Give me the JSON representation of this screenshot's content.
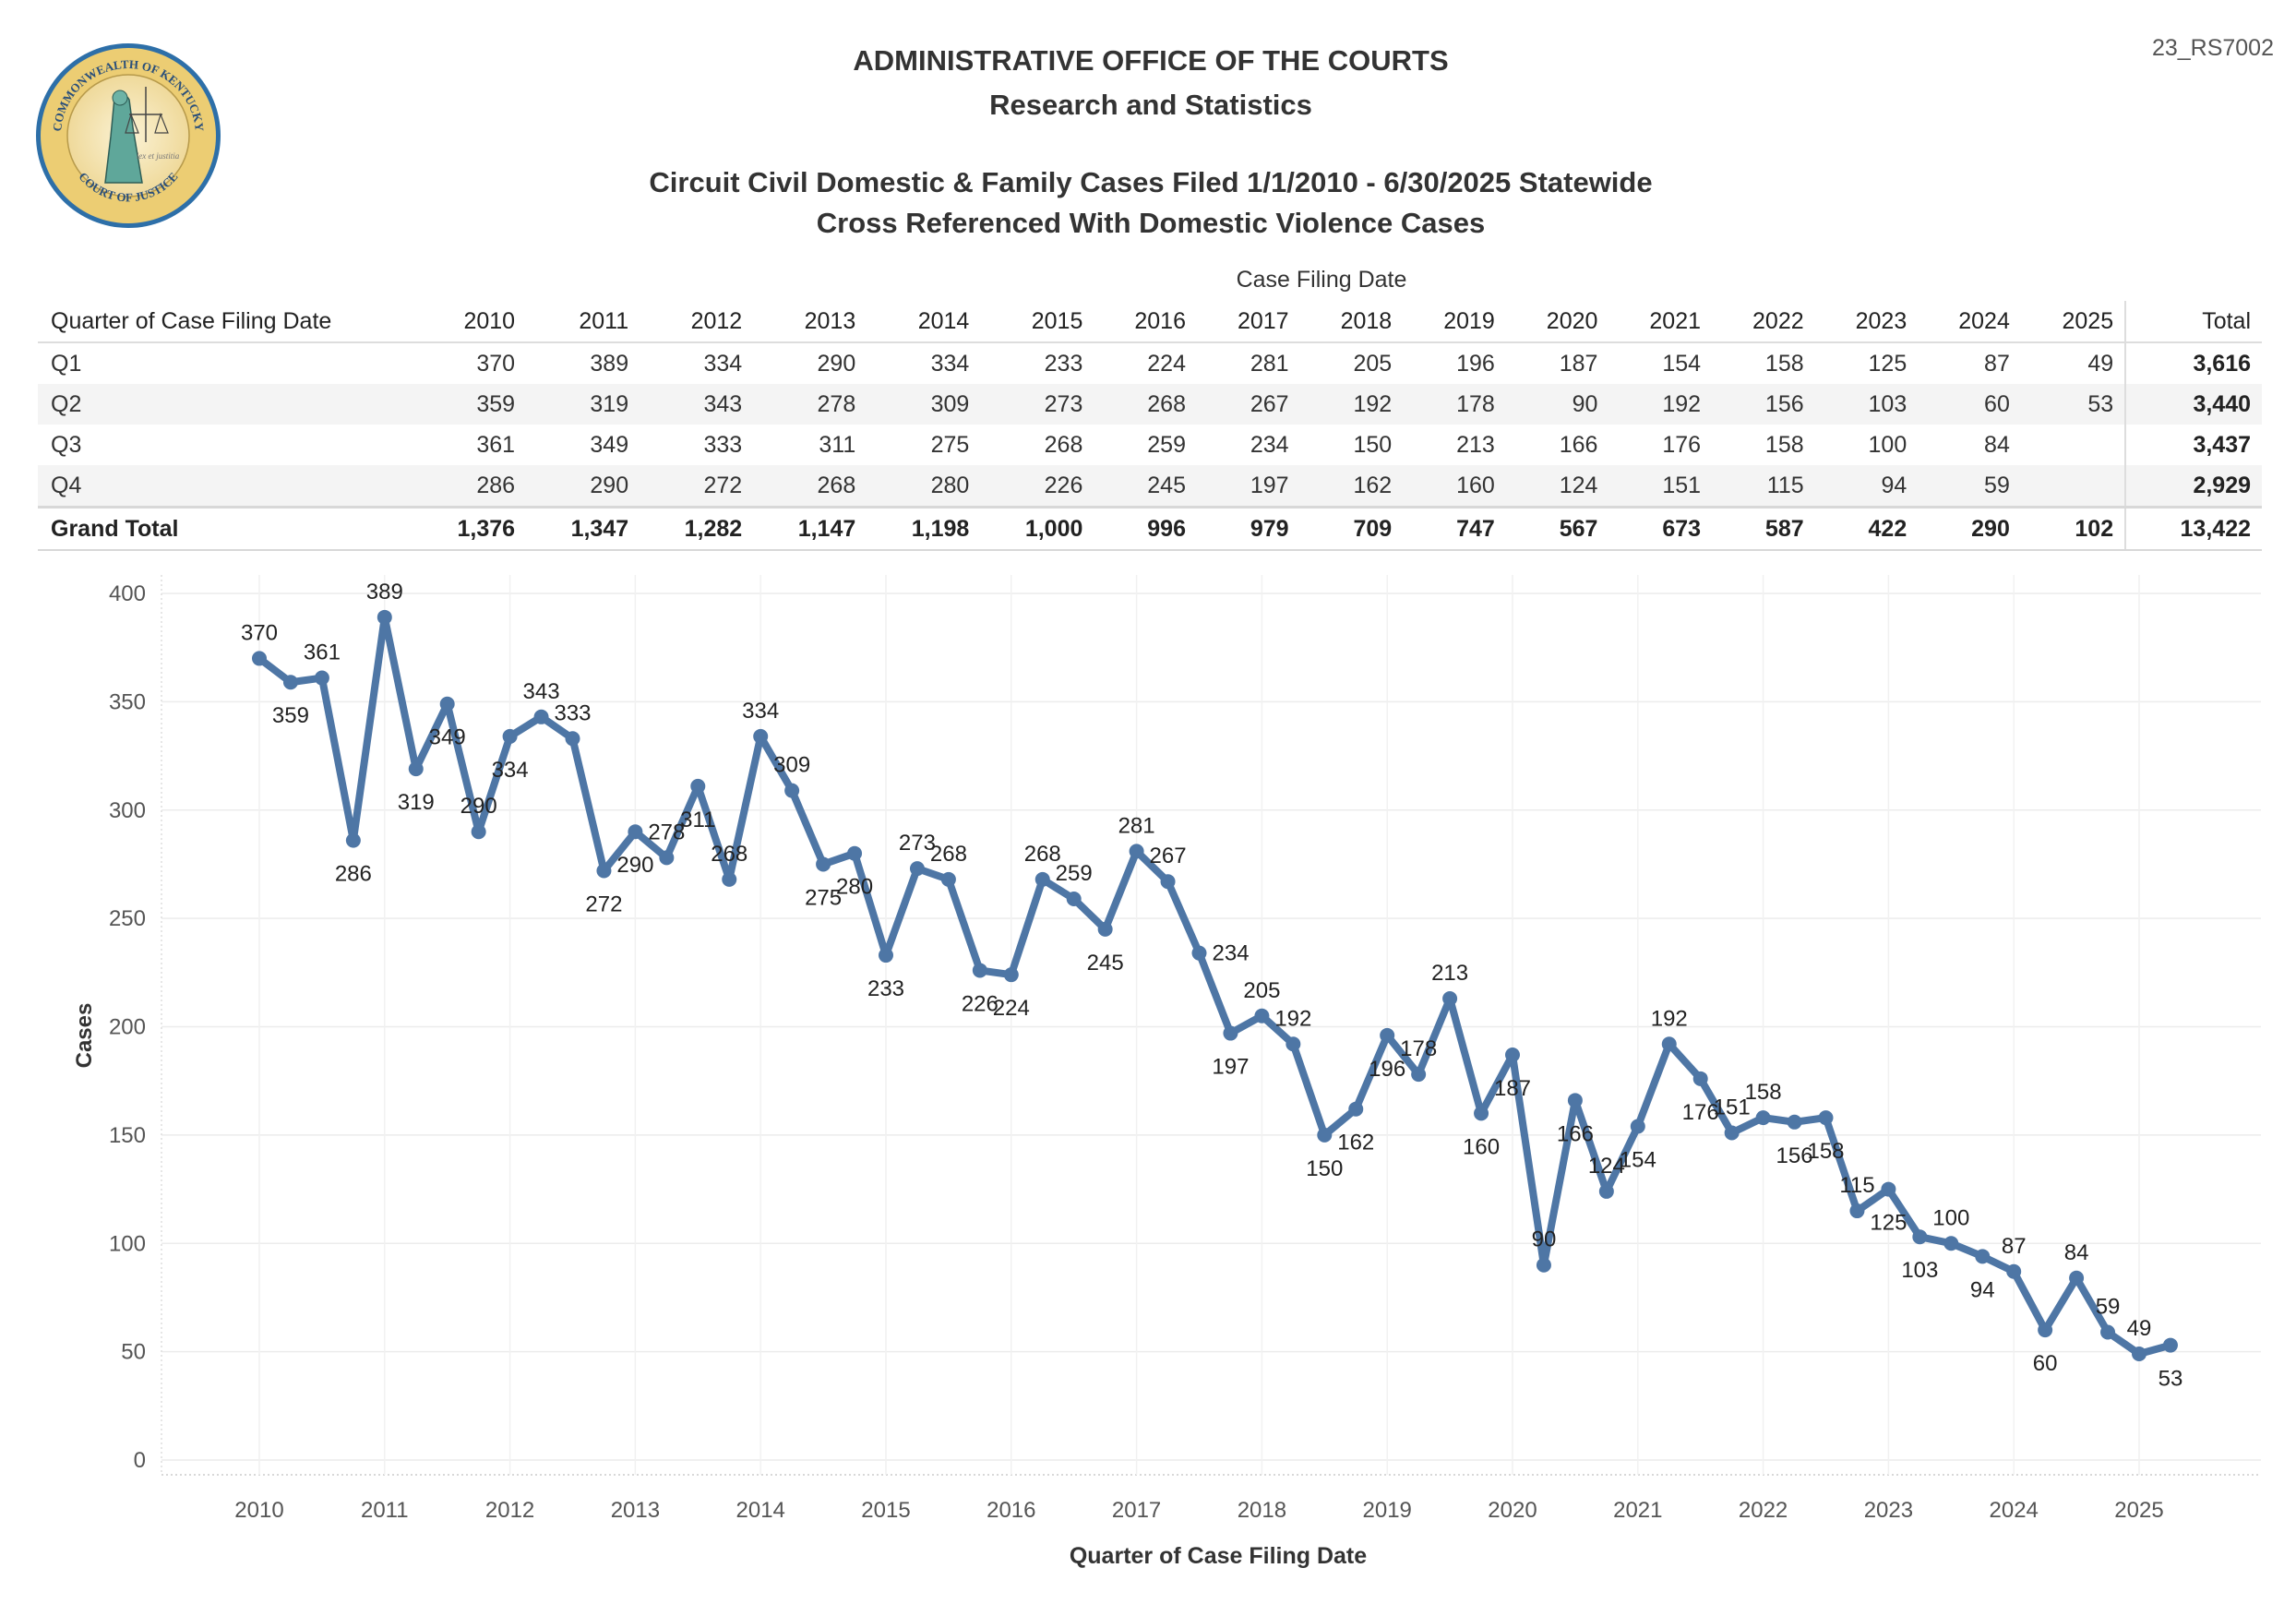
{
  "header": {
    "org": "ADMINISTRATIVE OFFICE OF THE COURTS",
    "dept": "Research and Statistics",
    "title_line1": "Circuit Civil Domestic & Family Cases Filed 1/1/2010 - 6/30/2025 Statewide",
    "title_line2": "Cross Referenced With Domestic Violence Cases",
    "report_id": "23_RS7002"
  },
  "logo": {
    "top_text": "COMMONWEALTH OF KENTUCKY",
    "bottom_text": "COURT OF JUSTICE",
    "motto": "lex et justitia"
  },
  "table": {
    "group_header": "Case Filing Date",
    "row_header": "Quarter of Case Filing Date",
    "columns": [
      "2010",
      "2011",
      "2012",
      "2013",
      "2014",
      "2015",
      "2016",
      "2017",
      "2018",
      "2019",
      "2020",
      "2021",
      "2022",
      "2023",
      "2024",
      "2025"
    ],
    "total_header": "Total",
    "rows": [
      {
        "label": "Q1",
        "values": [
          "370",
          "389",
          "334",
          "290",
          "334",
          "233",
          "224",
          "281",
          "205",
          "196",
          "187",
          "154",
          "158",
          "125",
          "87",
          "49"
        ],
        "total": "3,616"
      },
      {
        "label": "Q2",
        "values": [
          "359",
          "319",
          "343",
          "278",
          "309",
          "273",
          "268",
          "267",
          "192",
          "178",
          "90",
          "192",
          "156",
          "103",
          "60",
          "53"
        ],
        "total": "3,440"
      },
      {
        "label": "Q3",
        "values": [
          "361",
          "349",
          "333",
          "311",
          "275",
          "268",
          "259",
          "234",
          "150",
          "213",
          "166",
          "176",
          "158",
          "100",
          "84",
          ""
        ],
        "total": "3,437"
      },
      {
        "label": "Q4",
        "values": [
          "286",
          "290",
          "272",
          "268",
          "280",
          "226",
          "245",
          "197",
          "162",
          "160",
          "124",
          "151",
          "115",
          "94",
          "59",
          ""
        ],
        "total": "2,929"
      }
    ],
    "grand_total": {
      "label": "Grand Total",
      "values": [
        "1,376",
        "1,347",
        "1,282",
        "1,147",
        "1,198",
        "1,000",
        "996",
        "979",
        "709",
        "747",
        "567",
        "673",
        "587",
        "422",
        "290",
        "102"
      ],
      "total": "13,422"
    }
  },
  "chart_data": {
    "type": "line",
    "xlabel": "Quarter of Case Filing Date",
    "ylabel": "Cases",
    "ylim": [
      0,
      400
    ],
    "yticks": [
      0,
      50,
      100,
      150,
      200,
      250,
      300,
      350,
      400
    ],
    "xtick_labels": [
      "2010",
      "2011",
      "2012",
      "2013",
      "2014",
      "2015",
      "2016",
      "2017",
      "2018",
      "2019",
      "2020",
      "2021",
      "2022",
      "2023",
      "2024",
      "2025"
    ],
    "grid": true,
    "line_color": "#4e76a5",
    "series": [
      {
        "name": "Cases",
        "x": [
          "2010 Q1",
          "2010 Q2",
          "2010 Q3",
          "2010 Q4",
          "2011 Q1",
          "2011 Q2",
          "2011 Q3",
          "2011 Q4",
          "2012 Q1",
          "2012 Q2",
          "2012 Q3",
          "2012 Q4",
          "2013 Q1",
          "2013 Q2",
          "2013 Q3",
          "2013 Q4",
          "2014 Q1",
          "2014 Q2",
          "2014 Q3",
          "2014 Q4",
          "2015 Q1",
          "2015 Q2",
          "2015 Q3",
          "2015 Q4",
          "2016 Q1",
          "2016 Q2",
          "2016 Q3",
          "2016 Q4",
          "2017 Q1",
          "2017 Q2",
          "2017 Q3",
          "2017 Q4",
          "2018 Q1",
          "2018 Q2",
          "2018 Q3",
          "2018 Q4",
          "2019 Q1",
          "2019 Q2",
          "2019 Q3",
          "2019 Q4",
          "2020 Q1",
          "2020 Q2",
          "2020 Q3",
          "2020 Q4",
          "2021 Q1",
          "2021 Q2",
          "2021 Q3",
          "2021 Q4",
          "2022 Q1",
          "2022 Q2",
          "2022 Q3",
          "2022 Q4",
          "2023 Q1",
          "2023 Q2",
          "2023 Q3",
          "2023 Q4",
          "2024 Q1",
          "2024 Q2",
          "2024 Q3",
          "2024 Q4",
          "2025 Q1",
          "2025 Q2"
        ],
        "values": [
          370,
          359,
          361,
          286,
          389,
          319,
          349,
          290,
          334,
          343,
          333,
          272,
          290,
          278,
          311,
          268,
          334,
          309,
          275,
          280,
          233,
          273,
          268,
          226,
          224,
          268,
          259,
          245,
          281,
          267,
          234,
          197,
          205,
          192,
          150,
          162,
          196,
          178,
          213,
          160,
          187,
          90,
          166,
          124,
          154,
          192,
          176,
          151,
          158,
          156,
          158,
          115,
          125,
          103,
          100,
          94,
          87,
          60,
          84,
          59,
          49,
          53
        ]
      }
    ]
  }
}
